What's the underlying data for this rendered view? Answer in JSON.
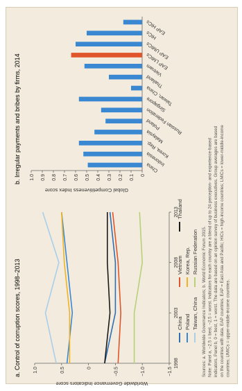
{
  "colors": {
    "panel_bg": "#f3ebdd",
    "bar_default": "#3a88d2",
    "bar_highlight": "#e0552b",
    "axis": "#666666",
    "text": "#333333",
    "note_text": "#555555"
  },
  "chart_data": [
    {
      "type": "line",
      "title": "a. Control of corruption scores, 1998–2013",
      "ylabel": "Worldwide Governance Indicators score",
      "xlabel": "",
      "x": [
        1998,
        2003,
        2008,
        2013
      ],
      "xticks": [
        "1998",
        "2003",
        "2008",
        "2013"
      ],
      "ylim": [
        -1.5,
        1.0
      ],
      "yticks": [
        "1.0",
        "0.5",
        "0",
        "−0.5",
        "−1.0",
        "−1.5"
      ],
      "grid": false,
      "legend_position": "bottom",
      "series": [
        {
          "name": "China",
          "color": "#2f6fb3",
          "values": [
            -0.3,
            -0.5,
            -0.5,
            -0.4
          ]
        },
        {
          "name": "Poland",
          "color": "#3a88d2",
          "values": [
            0.4,
            0.3,
            0.4,
            0.5
          ]
        },
        {
          "name": "Taiwan, China",
          "color": "#a9cfe9",
          "values": [
            0.6,
            0.8,
            0.55,
            0.85
          ]
        },
        {
          "name": "Vietnam",
          "color": "#e0552b",
          "values": [
            -0.55,
            -0.6,
            -0.55,
            -0.45
          ]
        },
        {
          "name": "Korea, Rep.",
          "color": "#f0b323",
          "values": [
            0.35,
            0.35,
            0.45,
            0.5
          ]
        },
        {
          "name": "Russian Federation",
          "color": "#b9d07a",
          "values": [
            -0.85,
            -0.85,
            -1.0,
            -0.95
          ]
        },
        {
          "name": "Thailand",
          "color": "#1a1a1a",
          "values": [
            -0.3,
            -0.4,
            -0.35,
            -0.35
          ]
        }
      ]
    },
    {
      "type": "bar",
      "title": "b. Irregular payments and bribes by firms, 2014",
      "ylabel": "Global Competitiveness Index score",
      "xlabel": "",
      "ylim": [
        0,
        1.0
      ],
      "yticks": [
        "0",
        "0.1",
        "0.2",
        "0.3",
        "0.4",
        "0.5",
        "0.6",
        "0.7",
        "0.8",
        "0.9",
        "1.0"
      ],
      "grid": false,
      "categories": [
        "China",
        "Indonesia",
        "Korea, Rep.",
        "Malaysia",
        "Poland",
        "Russian Federation",
        "Singapore",
        "Taiwan, China",
        "Thailand",
        "Vietnam",
        "EAP LMICs",
        "EAP UMICs",
        "HICs",
        "EAP HICs"
      ],
      "values": [
        0.49,
        0.53,
        0.57,
        0.43,
        0.33,
        0.37,
        0.57,
        0.1,
        0.3,
        0.52,
        0.64,
        0.6,
        0.5,
        0.17
      ],
      "highlight_index": 10
    }
  ],
  "footnote": {
    "sources": "Sources: a. Worldwide Governance Indicators; b. World Economic Forum 2015.",
    "note": "Note: Panel a, −2.5 = best, −2.5 = worst. Indicators for each country are a blend of up to 24 perception- and experience-based indicators. Panel b, 0 = best, 1 = worst. The data are based on an opinion survey of business executives. Group averages are based on the countries with data. EAP countries. EAP = East Asia and Pacific; HICs = high-income countries; LMICs = lower-middle-income countries; UMICs = upper-middle-income countries."
  }
}
